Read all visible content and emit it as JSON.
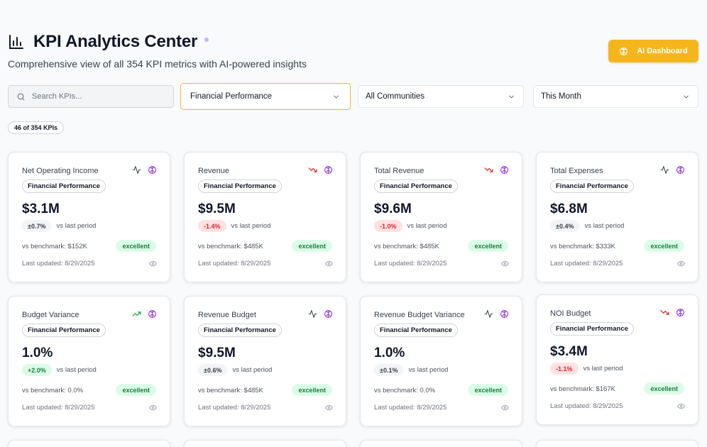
{
  "header": {
    "title": "KPI Analytics Center",
    "subtitle": "Comprehensive view of all 354 KPI metrics with AI-powered insights",
    "ai_button_label": "AI Dashboard"
  },
  "filters": {
    "search_placeholder": "Search KPIs...",
    "category_value": "Financial Performance",
    "community_value": "All Communities",
    "period_value": "This Month"
  },
  "result_count": "46 of 354 KPIs",
  "colors": {
    "accent": "#f5b51c",
    "status_good": "#15803d",
    "trend_down": "#dc2626",
    "ai_icon": "#9333ea"
  },
  "cards": [
    {
      "name": "Net Operating Income",
      "category": "Financial Performance",
      "value": "$3.1M",
      "change": "±0.7%",
      "change_tone": "neutral",
      "vs_label": "vs last period",
      "benchmark": "vs benchmark: $152K",
      "status": "excellent",
      "updated": "Last updated: 8/29/2025",
      "trend_icon": "activity-icon"
    },
    {
      "name": "Revenue",
      "category": "Financial Performance",
      "value": "$9.5M",
      "change": "-1.4%",
      "change_tone": "neg",
      "vs_label": "vs last period",
      "benchmark": "vs benchmark: $485K",
      "status": "excellent",
      "updated": "Last updated: 8/29/2025",
      "trend_icon": "trending-down-icon"
    },
    {
      "name": "Total Revenue",
      "category": "Financial Performance",
      "value": "$9.6M",
      "change": "-1.0%",
      "change_tone": "neg",
      "vs_label": "vs last period",
      "benchmark": "vs benchmark: $485K",
      "status": "excellent",
      "updated": "Last updated: 8/29/2025",
      "trend_icon": "trending-down-icon"
    },
    {
      "name": "Total Expenses",
      "category": "Financial Performance",
      "value": "$6.8M",
      "change": "±0.4%",
      "change_tone": "neutral",
      "vs_label": "vs last period",
      "benchmark": "vs benchmark: $333K",
      "status": "excellent",
      "updated": "Last updated: 8/29/2025",
      "trend_icon": "activity-icon"
    },
    {
      "name": "Budget Variance",
      "category": "Financial Performance",
      "value": "1.0%",
      "change": "+2.0%",
      "change_tone": "pos",
      "vs_label": "vs last period",
      "benchmark": "vs benchmark: 0.0%",
      "status": "excellent",
      "updated": "Last updated: 8/29/2025",
      "trend_icon": "trending-up-icon"
    },
    {
      "name": "Revenue Budget",
      "category": "Financial Performance",
      "value": "$9.5M",
      "change": "±0.6%",
      "change_tone": "neutral",
      "vs_label": "vs last period",
      "benchmark": "vs benchmark: $485K",
      "status": "excellent",
      "updated": "Last updated: 8/29/2025",
      "trend_icon": "activity-icon"
    },
    {
      "name": "Revenue Budget Variance",
      "category": "Financial Performance",
      "value": "1.0%",
      "change": "±0.1%",
      "change_tone": "neutral",
      "vs_label": "vs last period",
      "benchmark": "vs benchmark: 0.0%",
      "status": "excellent",
      "updated": "Last updated: 8/29/2025",
      "trend_icon": "activity-icon"
    },
    {
      "name": "NOI Budget",
      "category": "Financial Performance",
      "value": "$3.4M",
      "change": "-1.1%",
      "change_tone": "neg",
      "vs_label": "vs last period",
      "benchmark": "vs benchmark: $167K",
      "status": "excellent",
      "updated": "Last updated: 8/29/2025",
      "trend_icon": "trending-down-icon"
    }
  ]
}
